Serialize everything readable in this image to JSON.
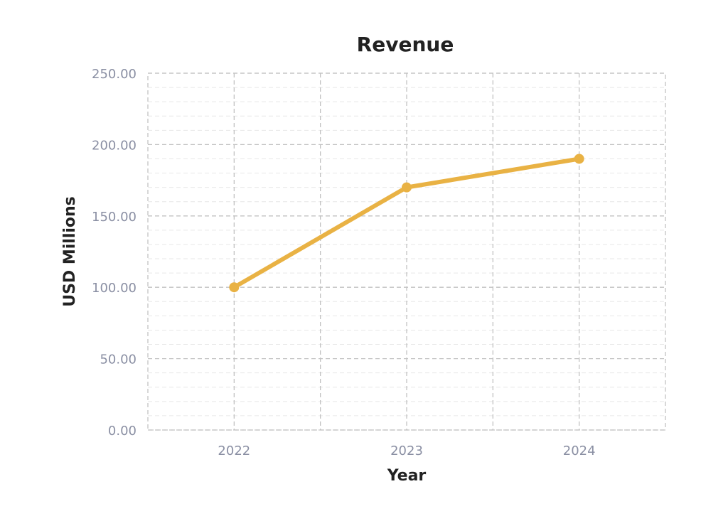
{
  "chart_data": {
    "type": "line",
    "title": "Revenue",
    "xlabel": "Year",
    "ylabel": "USD Millions",
    "categories": [
      "2022",
      "2023",
      "2024"
    ],
    "series": [
      {
        "values": [
          100,
          170,
          190
        ],
        "color": "#e9b244"
      }
    ],
    "ylim": [
      0,
      250
    ],
    "yticks": [
      0,
      50,
      100,
      150,
      200,
      250
    ],
    "ytick_labels": [
      "0.00",
      "50.00",
      "100.00",
      "150.00",
      "200.00",
      "250.00"
    ],
    "grid": true,
    "legend": "none"
  }
}
